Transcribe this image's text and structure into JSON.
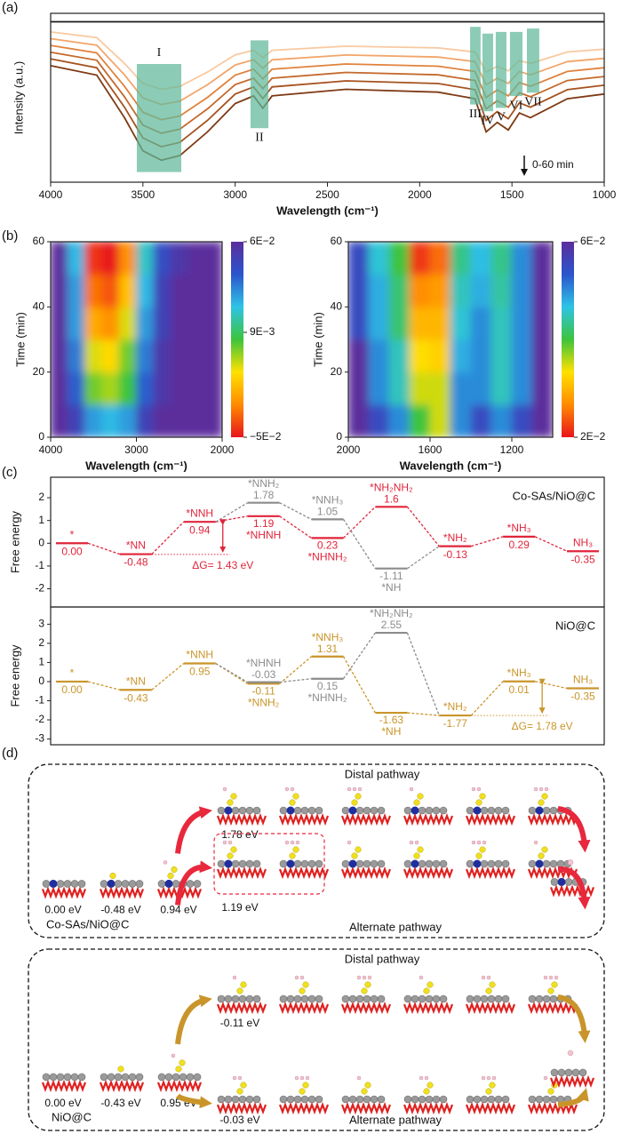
{
  "panel_labels": [
    "(a)",
    "(b)",
    "(c)",
    "(d)"
  ],
  "chart_data": [
    {
      "type": "line",
      "xlabel": "Wavelength (cm⁻¹)",
      "ylabel": "Intensity (a.u.)",
      "x": [
        4000,
        3750,
        3600,
        3500,
        3400,
        3300,
        3150,
        3000,
        2900,
        2850,
        2800,
        2400,
        1900,
        1700,
        1640,
        1580,
        1520,
        1460,
        1400,
        1200,
        1000
      ],
      "xlim": [
        4000,
        1000
      ],
      "xticks": [
        4000,
        3500,
        3000,
        2500,
        2000,
        1500,
        1000
      ],
      "ylim": [
        0,
        10
      ],
      "series": [
        {
          "color": "#1a1a1a",
          "values": [
            9.5,
            9.5,
            9.5,
            9.5,
            9.5,
            9.5,
            9.5,
            9.5,
            9.5,
            9.5,
            9.5,
            9.5,
            9.5,
            9.5,
            9.5,
            9.5,
            9.5,
            9.5,
            9.5,
            9.5,
            9.5
          ]
        },
        {
          "color": "#f9c9a0",
          "values": [
            8.9,
            8.56,
            7.03,
            5.84,
            5.5,
            5.67,
            6.52,
            7.54,
            7.81,
            7.37,
            7.81,
            8.05,
            7.95,
            7.71,
            6.52,
            6.86,
            6.59,
            7.2,
            7.03,
            7.71,
            7.88
          ]
        },
        {
          "color": "#f2a56a",
          "values": [
            8.5,
            8.11,
            6.36,
            4.99,
            4.6,
            4.8,
            5.77,
            6.94,
            7.25,
            6.75,
            7.25,
            7.53,
            7.41,
            7.14,
            5.77,
            6.16,
            5.85,
            6.55,
            6.36,
            7.14,
            7.33
          ]
        },
        {
          "color": "#e0823c",
          "values": [
            8.1,
            7.66,
            5.68,
            4.14,
            3.7,
            3.92,
            5.02,
            6.34,
            6.69,
            6.12,
            6.69,
            7.0,
            6.87,
            6.56,
            5.02,
            5.46,
            5.11,
            5.9,
            5.68,
            6.56,
            6.78
          ]
        },
        {
          "color": "#c4692b",
          "values": [
            7.7,
            7.22,
            5.06,
            3.38,
            2.9,
            3.14,
            4.34,
            5.78,
            6.16,
            5.54,
            6.16,
            6.5,
            6.36,
            6.02,
            4.34,
            4.82,
            4.44,
            5.3,
            5.06,
            6.02,
            6.26
          ]
        },
        {
          "color": "#a5521f",
          "values": [
            7.3,
            6.78,
            4.44,
            2.62,
            2.1,
            2.36,
            3.66,
            5.22,
            5.64,
            4.96,
            5.64,
            6.0,
            5.84,
            5.48,
            3.66,
            4.18,
            3.76,
            4.7,
            4.44,
            5.48,
            5.74
          ]
        },
        {
          "color": "#7e3a14",
          "values": [
            6.9,
            6.34,
            3.82,
            1.86,
            1.3,
            1.58,
            2.98,
            4.66,
            5.11,
            4.38,
            5.11,
            5.5,
            5.33,
            4.94,
            2.98,
            3.54,
            3.09,
            4.1,
            3.82,
            4.94,
            5.22
          ]
        }
      ],
      "region_color": "#5fb89a",
      "regions": [
        {
          "label": "I",
          "x": [
            3533,
            3292
          ],
          "y": [
            0.6,
            7.0
          ],
          "label_side": "top"
        },
        {
          "label": "II",
          "x": [
            2917,
            2820
          ],
          "y": [
            3.2,
            8.4
          ],
          "label_side": "bottom"
        },
        {
          "label": "III",
          "x": [
            1727,
            1670
          ],
          "y": [
            4.6,
            9.2
          ],
          "label_side": "bottom"
        },
        {
          "label": "IV",
          "x": [
            1660,
            1602
          ],
          "y": [
            4.2,
            8.8
          ],
          "label_side": "bottom"
        },
        {
          "label": "V",
          "x": [
            1588,
            1530
          ],
          "y": [
            4.4,
            8.9
          ],
          "label_side": "bottom"
        },
        {
          "label": "VI",
          "x": [
            1511,
            1443
          ],
          "y": [
            5.1,
            8.9
          ],
          "label_side": "bottom"
        },
        {
          "label": "VII",
          "x": [
            1419,
            1352
          ],
          "y": [
            5.3,
            9.1
          ],
          "label_side": "bottom"
        }
      ],
      "annotation": "0-60 min"
    },
    {
      "type": "heatmap",
      "xlabel": "Wavelength (cm⁻¹)",
      "ylabel": "Time (min)",
      "x": [
        3900,
        3700,
        3500,
        3300,
        3100,
        2900,
        2700,
        2500,
        2300,
        2100
      ],
      "y": [
        5,
        15,
        25,
        35,
        45,
        55
      ],
      "z": [
        [
          0.06,
          0.05,
          0.03,
          0.025,
          0.03,
          0.05,
          0.06,
          0.06,
          0.06,
          0.06
        ],
        [
          0.06,
          0.04,
          0.0,
          -0.005,
          0.005,
          0.04,
          0.055,
          0.06,
          0.06,
          0.06
        ],
        [
          0.06,
          0.035,
          -0.01,
          -0.015,
          0.0,
          0.035,
          0.055,
          0.06,
          0.06,
          0.06
        ],
        [
          0.06,
          0.03,
          -0.025,
          -0.03,
          -0.01,
          0.03,
          0.05,
          0.06,
          0.06,
          0.06
        ],
        [
          0.06,
          0.03,
          -0.035,
          -0.04,
          -0.02,
          0.025,
          0.05,
          0.06,
          0.06,
          0.06
        ],
        [
          0.06,
          0.025,
          -0.045,
          -0.05,
          -0.03,
          0.02,
          0.045,
          0.055,
          0.06,
          0.06
        ]
      ],
      "xlim": [
        4000,
        2000
      ],
      "ylim": [
        0,
        60
      ],
      "xticks": [
        4000,
        3000,
        2000
      ],
      "yticks": [
        0,
        20,
        40,
        60
      ],
      "zlim": [
        -0.05,
        0.06
      ],
      "zticks": [
        {
          "value": 0.06,
          "label": "6E−2"
        },
        {
          "value": 0.009,
          "label": "9E−3"
        },
        {
          "value": -0.05,
          "label": "−5E−2"
        }
      ],
      "colormap": [
        "#e8141c",
        "#ff8a00",
        "#ffe100",
        "#3cc43c",
        "#2ec4e6",
        "#2b55cc",
        "#5b2d9c"
      ]
    },
    {
      "type": "heatmap",
      "xlabel": "Wavelength (cm⁻¹)",
      "ylabel": "Time (min)",
      "x": [
        1950,
        1850,
        1750,
        1650,
        1550,
        1450,
        1350,
        1250,
        1150,
        1050
      ],
      "y": [
        5,
        15,
        25,
        35,
        45,
        55
      ],
      "z": [
        [
          0.06,
          0.055,
          0.05,
          0.04,
          0.035,
          0.05,
          0.055,
          0.05,
          0.055,
          0.06
        ],
        [
          0.06,
          0.05,
          0.045,
          0.035,
          0.035,
          0.05,
          0.05,
          0.045,
          0.05,
          0.06
        ],
        [
          0.06,
          0.05,
          0.045,
          0.033,
          0.032,
          0.048,
          0.05,
          0.045,
          0.05,
          0.06
        ],
        [
          0.055,
          0.048,
          0.042,
          0.03,
          0.03,
          0.046,
          0.05,
          0.045,
          0.05,
          0.06
        ],
        [
          0.055,
          0.048,
          0.042,
          0.027,
          0.028,
          0.045,
          0.048,
          0.044,
          0.05,
          0.06
        ],
        [
          0.055,
          0.046,
          0.04,
          0.022,
          0.025,
          0.043,
          0.047,
          0.043,
          0.05,
          0.06
        ]
      ],
      "xlim": [
        2000,
        1000
      ],
      "ylim": [
        0,
        60
      ],
      "xticks": [
        2000,
        1600,
        1200
      ],
      "yticks": [
        0,
        20,
        40,
        60
      ],
      "zlim": [
        0.02,
        0.06
      ],
      "zticks": [
        {
          "value": 0.06,
          "label": "6E−2"
        },
        {
          "value": 0.02,
          "label": "2E−2"
        }
      ],
      "colormap": [
        "#e8141c",
        "#ff8a00",
        "#ffe100",
        "#3cc43c",
        "#2ec4e6",
        "#2b55cc",
        "#5b2d9c"
      ]
    },
    {
      "type": "energy",
      "title": "Co-SAs/NiO@C",
      "ylabel": "Free energy",
      "ylim": [
        -2.8,
        2.9
      ],
      "yticks": [
        -2,
        -1,
        0,
        1,
        2
      ],
      "series": [
        {
          "color": "#e0243a",
          "values": [
            0,
            -0.48,
            0.94,
            1.19,
            0.23,
            1.6,
            -0.13,
            0.29,
            -0.35
          ],
          "labels": [
            "*",
            "*NN",
            "*NNH",
            "*NHNH",
            "*NHNH₂",
            "*NH₂NH₂",
            "*NH₂",
            "*NH₃",
            "NH₃"
          ],
          "value_labels": [
            "0.00",
            "-0.48",
            "0.94",
            "1.19",
            "0.23",
            "1.6",
            "-0.13",
            "0.29",
            "-0.35"
          ]
        },
        {
          "color": "#8c8c8c",
          "values": [
            null,
            null,
            null,
            1.78,
            1.05,
            -1.11,
            null,
            null,
            null
          ],
          "labels": [
            null,
            null,
            null,
            "*NNH₂",
            "*NNH₃",
            "*NH",
            null,
            null,
            null
          ],
          "value_labels": [
            null,
            null,
            null,
            "1.78",
            "1.05",
            "-1.11",
            null,
            null,
            null
          ]
        }
      ],
      "delta_g": {
        "value": 1.43,
        "label": "ΔG= 1.43 eV",
        "step": 2
      }
    },
    {
      "type": "energy",
      "title": "NiO@C",
      "ylabel": "Free energy",
      "ylim": [
        -3.3,
        3.9
      ],
      "yticks": [
        -3,
        -2,
        -1,
        0,
        1,
        2,
        3
      ],
      "series": [
        {
          "color": "#c9952a",
          "values": [
            0,
            -0.43,
            0.95,
            -0.11,
            1.31,
            -1.63,
            -1.77,
            0.01,
            -0.35
          ],
          "labels": [
            "*",
            "*NN",
            "*NNH",
            "*NNH₂",
            "*NNH₃",
            "*NH",
            "*NH₂",
            "*NH₃",
            "NH₃"
          ],
          "value_labels": [
            "0.00",
            "-0.43",
            "0.95",
            "-0.11",
            "1.31",
            "-1.63",
            "-1.77",
            "0.01",
            "-0.35"
          ]
        },
        {
          "color": "#8c8c8c",
          "values": [
            null,
            null,
            null,
            -0.03,
            0.15,
            2.55,
            null,
            null,
            null
          ],
          "labels": [
            null,
            null,
            null,
            "*NHNH",
            "*NHNH₂",
            "*NH₂NH₂",
            null,
            null,
            null
          ],
          "value_labels": [
            null,
            null,
            null,
            "-0.03",
            "0.15",
            "2.55",
            null,
            null,
            null
          ]
        }
      ],
      "delta_g": {
        "value": 1.78,
        "label": "ΔG= 1.78 eV",
        "step": 7
      }
    }
  ],
  "panel_d": [
    {
      "title": "Co-SAs/NiO@C",
      "distal": "Distal pathway",
      "alternate": "Alternate pathway",
      "energies": [
        "0.00 eV",
        "-0.48 eV",
        "0.94 eV",
        "1.78 eV",
        "1.19 eV"
      ]
    },
    {
      "title": "NiO@C",
      "distal": "Distal pathway",
      "alternate": "Alternate pathway",
      "energies": [
        "0.00 eV",
        "-0.43 eV",
        "0.95 eV",
        "-0.11 eV",
        "-0.03 eV"
      ]
    }
  ]
}
